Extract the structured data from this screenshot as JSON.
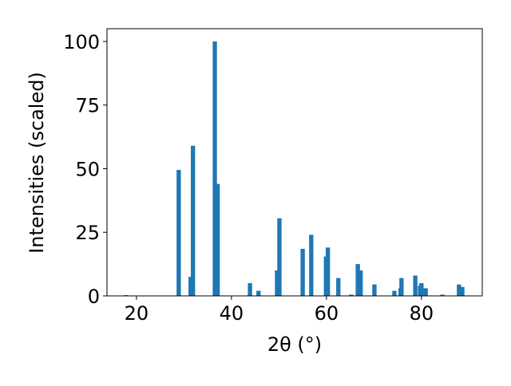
{
  "chart_data": {
    "type": "bar",
    "xlabel": "2θ (°)",
    "ylabel": "Intensities (scaled)",
    "x": [
      17.8,
      28.9,
      31.4,
      31.9,
      36.5,
      37.1,
      43.9,
      45.7,
      49.6,
      50.1,
      55.0,
      56.8,
      59.9,
      60.3,
      62.5,
      65.2,
      66.6,
      67.2,
      70.1,
      74.3,
      75.6,
      75.8,
      78.7,
      79.7,
      80.0,
      80.9,
      84.4,
      87.9,
      88.6
    ],
    "values": [
      0.3,
      49.5,
      7.5,
      59,
      100,
      44,
      5,
      2,
      10,
      30.5,
      18.5,
      24,
      15.5,
      19,
      7,
      0.5,
      12.5,
      10,
      4.5,
      2,
      3,
      7,
      8,
      4,
      5,
      3,
      0.5,
      4.5,
      3.5
    ],
    "color": "#1f77b4",
    "xlim": [
      13.8,
      92.8
    ],
    "xticks": [
      20,
      40,
      60,
      80
    ],
    "ylim": [
      0,
      105
    ],
    "yticks": [
      0,
      25,
      50,
      75,
      100
    ]
  }
}
